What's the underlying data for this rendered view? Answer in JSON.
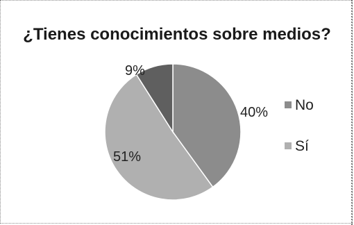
{
  "chart_data": {
    "type": "pie",
    "title": "¿Tienes conocimientos sobre medios?",
    "categories": [
      "No",
      "Sí",
      ""
    ],
    "values": [
      40,
      51,
      9
    ],
    "labels": [
      "40%",
      "51%",
      "9%"
    ],
    "colors": [
      "#8c8c8c",
      "#b0b0b0",
      "#5f5f5f"
    ],
    "legend": {
      "position": "right",
      "entries": [
        {
          "label": "No",
          "color": "#8c8c8c"
        },
        {
          "label": "Sí",
          "color": "#b0b0b0"
        }
      ]
    }
  }
}
